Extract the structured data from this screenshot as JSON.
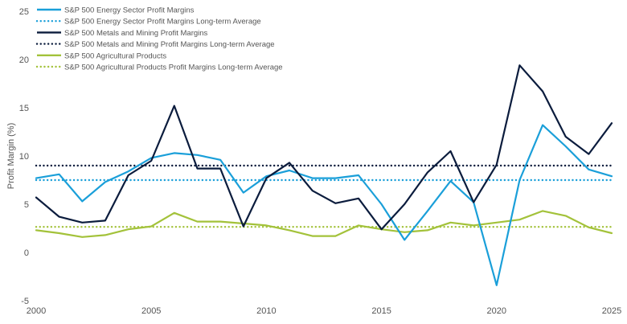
{
  "chart_data": {
    "type": "line",
    "title": "",
    "xlabel": "",
    "ylabel": "Profit Margin (%)",
    "xlim": [
      2000,
      2025
    ],
    "ylim": [
      -5,
      25
    ],
    "x_ticks": [
      "2000",
      "2005",
      "2010",
      "2015",
      "2020",
      "2025"
    ],
    "y_ticks": [
      "-5",
      "0",
      "5",
      "10",
      "15",
      "20",
      "25"
    ],
    "grid": false,
    "legend_position": "top-left",
    "x": [
      2000,
      2001,
      2002,
      2003,
      2004,
      2005,
      2006,
      2007,
      2008,
      2009,
      2010,
      2011,
      2012,
      2013,
      2014,
      2015,
      2016,
      2017,
      2018,
      2019,
      2020,
      2021,
      2022,
      2023,
      2024,
      2025
    ],
    "series": [
      {
        "name": "S&P 500 Energy Sector Profit Margins",
        "color": "#1a9fd9",
        "style": "solid",
        "values": [
          7.7,
          8.1,
          5.3,
          7.3,
          8.4,
          9.8,
          10.3,
          10.1,
          9.6,
          6.2,
          7.9,
          8.5,
          7.7,
          7.7,
          8.0,
          5.0,
          1.3,
          4.3,
          7.4,
          5.2,
          -3.4,
          7.5,
          13.2,
          11.0,
          8.6,
          7.9
        ]
      },
      {
        "name": "S&P 500 Energy Sector Profit Margins Long-term Average",
        "color": "#1a9fd9",
        "style": "dotted",
        "values": [
          7.5,
          7.5,
          7.5,
          7.5,
          7.5,
          7.5,
          7.5,
          7.5,
          7.5,
          7.5,
          7.5,
          7.5,
          7.5,
          7.5,
          7.5,
          7.5,
          7.5,
          7.5,
          7.5,
          7.5,
          7.5,
          7.5,
          7.5,
          7.5,
          7.5,
          7.5
        ]
      },
      {
        "name": "S&P 500 Metals and Mining Profit Margins",
        "color": "#0b1c3d",
        "style": "solid",
        "values": [
          5.7,
          3.7,
          3.1,
          3.3,
          8.0,
          9.5,
          15.2,
          8.7,
          8.7,
          2.7,
          7.7,
          9.3,
          6.4,
          5.1,
          5.6,
          2.4,
          5.0,
          8.3,
          10.5,
          5.2,
          9.1,
          19.4,
          16.7,
          12.0,
          10.2,
          13.4
        ]
      },
      {
        "name": "S&P 500 Metals and Mining  Profit Margins Long-term Average",
        "color": "#0b1c3d",
        "style": "dotted",
        "values": [
          9.0,
          9.0,
          9.0,
          9.0,
          9.0,
          9.0,
          9.0,
          9.0,
          9.0,
          9.0,
          9.0,
          9.0,
          9.0,
          9.0,
          9.0,
          9.0,
          9.0,
          9.0,
          9.0,
          9.0,
          9.0,
          9.0,
          9.0,
          9.0,
          9.0,
          9.0
        ]
      },
      {
        "name": "S&P 500 Agricultural Products",
        "color": "#a3c23a",
        "style": "solid",
        "values": [
          2.3,
          2.0,
          1.6,
          1.8,
          2.4,
          2.7,
          4.1,
          3.2,
          3.2,
          3.0,
          2.8,
          2.3,
          1.7,
          1.7,
          2.8,
          2.4,
          2.1,
          2.3,
          3.1,
          2.8,
          3.1,
          3.4,
          4.3,
          3.8,
          2.6,
          2.0
        ]
      },
      {
        "name": "S&P 500 Agricultural Products Profit Margins Long-term Average",
        "color": "#a3c23a",
        "style": "dotted",
        "values": [
          2.65,
          2.65,
          2.65,
          2.65,
          2.65,
          2.65,
          2.65,
          2.65,
          2.65,
          2.65,
          2.65,
          2.65,
          2.65,
          2.65,
          2.65,
          2.65,
          2.65,
          2.65,
          2.65,
          2.65,
          2.65,
          2.65,
          2.65,
          2.65,
          2.65,
          2.65
        ]
      }
    ]
  }
}
